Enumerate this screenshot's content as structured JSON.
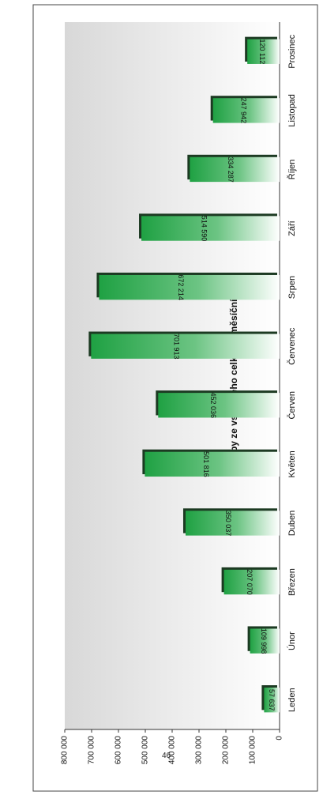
{
  "page_number": "46",
  "chart_data": {
    "type": "bar",
    "title": "Tržby ze vstupného celkem - měsíční vývoj",
    "xlabel": "",
    "ylabel": "",
    "categories": [
      "Leden",
      "Únor",
      "Březen",
      "Duben",
      "Květen",
      "Červen",
      "Červenec",
      "Srpen",
      "Září",
      "Říjen",
      "Listopad",
      "Prosinec"
    ],
    "values": [
      57637,
      109998,
      207070,
      350037,
      501816,
      452036,
      701913,
      672214,
      514590,
      334287,
      247942,
      120112
    ],
    "data_labels": [
      "57 637",
      "109 998",
      "207 070",
      "350 037",
      "501 816",
      "452 036",
      "701 913",
      "672 214",
      "514 590",
      "334 287",
      "247 942",
      "120 112"
    ],
    "ylim": [
      0,
      800000
    ],
    "yticks": [
      0,
      100000,
      200000,
      300000,
      400000,
      500000,
      600000,
      700000,
      800000
    ],
    "ytick_labels": [
      "0",
      "100 000",
      "200 000",
      "300 000",
      "400 000",
      "500 000",
      "600 000",
      "700 000",
      "800 000"
    ],
    "grid": false,
    "legend": "none",
    "orientation": "page rotated 90 degrees clockwise",
    "colors": {
      "bar_dark": "#1fa143",
      "bar_light": "#ffffff",
      "bar_shadow": "#1c3a22",
      "plot_bg_dark": "#d8d8d8",
      "plot_bg_light": "#ffffff"
    }
  }
}
